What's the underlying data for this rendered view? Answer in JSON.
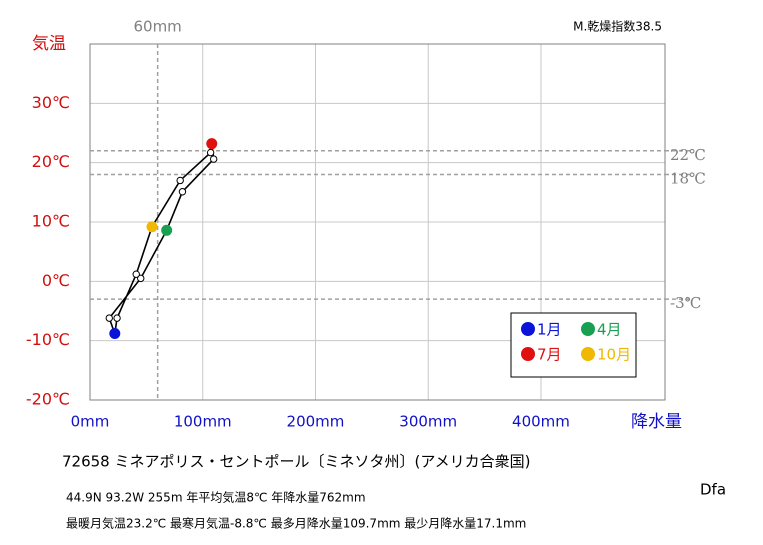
{
  "chart_data": {
    "type": "climograph",
    "y_label": "気温",
    "x_label": "降水量",
    "index_text": "M.乾燥指数38.5",
    "station": "72658  ミネアポリス・セントポール〔ミネソタ州〕(アメリカ合衆国)",
    "info1": "44.9N  93.2W 255m  年平均気温8℃ 年降水量762mm",
    "info2": "最暖月気温23.2℃ 最寒月気温-8.8℃ 最多月降水量109.7mm 最少月降水量17.1mm",
    "climate_class": "Dfa",
    "x": [
      22,
      17.1,
      45,
      68,
      82,
      109.7,
      108,
      107,
      80,
      55,
      41,
      24
    ],
    "values": [
      -8.8,
      -6.2,
      0.5,
      8.6,
      15.1,
      20.6,
      23.2,
      21.7,
      17.0,
      9.2,
      1.2,
      -6.2
    ],
    "point_colors": [
      "#0a14d8",
      "#ffffff",
      "#ffffff",
      "#18a050",
      "#ffffff",
      "#ffffff",
      "#e01010",
      "#ffffff",
      "#ffffff",
      "#f0b800",
      "#ffffff",
      "#ffffff"
    ],
    "line_color": "#000000",
    "xlim": [
      0,
      510
    ],
    "ylim": [
      -20,
      40
    ],
    "xticks": [
      {
        "value": 0,
        "label": "0mm"
      },
      {
        "value": 100,
        "label": "100mm"
      },
      {
        "value": 200,
        "label": "200mm"
      },
      {
        "value": 300,
        "label": "300mm"
      },
      {
        "value": 400,
        "label": "400mm"
      }
    ],
    "yticks": [
      {
        "value": -20,
        "label": "-20℃"
      },
      {
        "value": -10,
        "label": "-10℃"
      },
      {
        "value": 0,
        "label": "0℃"
      },
      {
        "value": 10,
        "label": "10℃"
      },
      {
        "value": 20,
        "label": "20℃"
      },
      {
        "value": 30,
        "label": "30℃"
      }
    ],
    "grid": true,
    "ref_x": {
      "value": 60,
      "label": "60mm"
    },
    "ref_y": [
      {
        "value": 22,
        "label": "22℃"
      },
      {
        "value": 18,
        "label": "18℃"
      },
      {
        "value": -3,
        "label": "-3℃"
      }
    ],
    "legend": [
      {
        "name": "1月",
        "color": "#0a14d8"
      },
      {
        "name": "4月",
        "color": "#18a050"
      },
      {
        "name": "7月",
        "color": "#e01010"
      },
      {
        "name": "10月",
        "color": "#f0b800"
      }
    ],
    "legend_position": "lower right"
  }
}
